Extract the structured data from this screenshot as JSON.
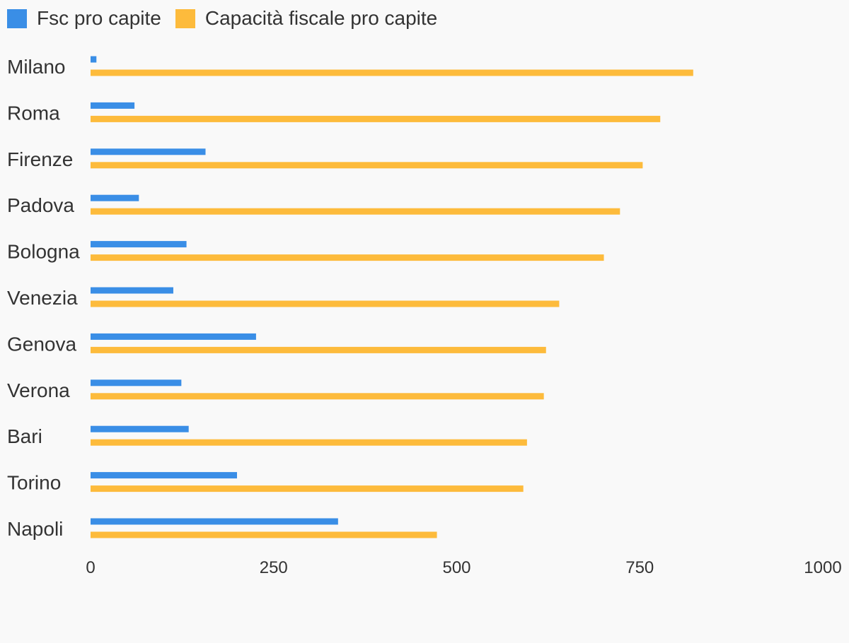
{
  "chart_data": {
    "type": "bar",
    "orientation": "horizontal",
    "categories": [
      "Milano",
      "Roma",
      "Firenze",
      "Padova",
      "Bologna",
      "Venezia",
      "Genova",
      "Verona",
      "Bari",
      "Torino",
      "Napoli"
    ],
    "series": [
      {
        "name": "Fsc pro capite",
        "color": "#3a8ee6",
        "values": [
          8,
          60,
          157,
          66,
          131,
          113,
          226,
          124,
          134,
          200,
          338
        ]
      },
      {
        "name": "Capacità fiscale pro capite",
        "color": "#fdbb3c",
        "values": [
          823,
          778,
          754,
          723,
          701,
          640,
          622,
          619,
          596,
          591,
          473
        ]
      }
    ],
    "xticks": [
      "0",
      "250",
      "500",
      "750",
      "1000"
    ],
    "xlim": [
      0,
      1000
    ],
    "grid": false,
    "legend_position": "top-left"
  }
}
